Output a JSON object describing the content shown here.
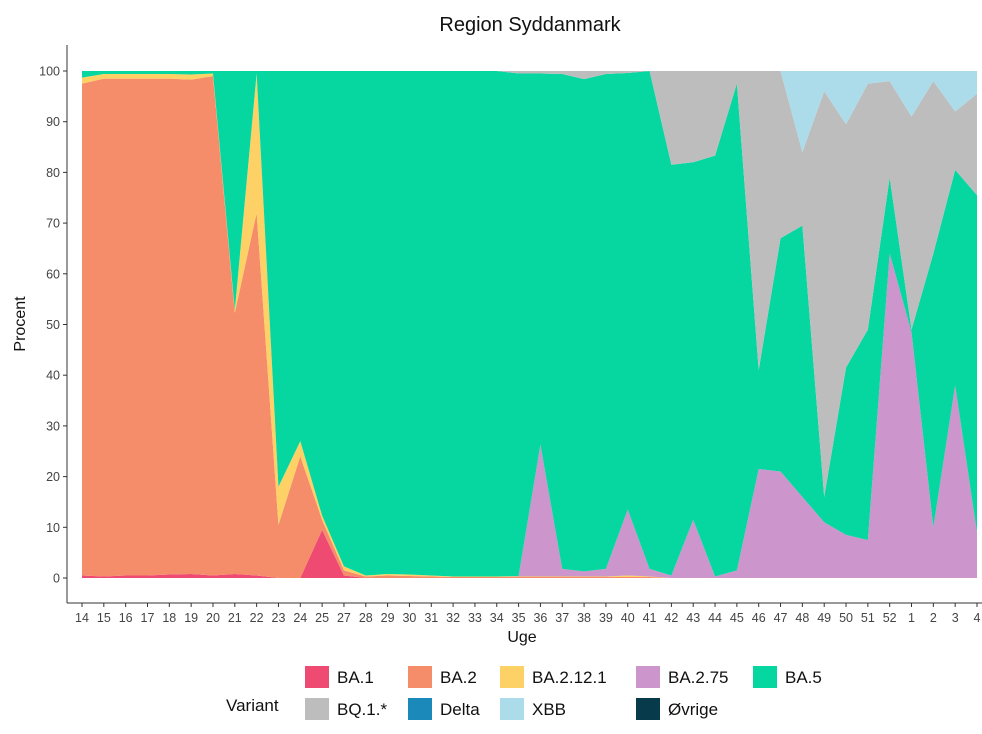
{
  "chart_data": {
    "type": "area",
    "stacked": true,
    "title": "Region Syddanmark",
    "xlabel": "Uge",
    "ylabel": "Procent",
    "ylim": [
      0,
      100
    ],
    "yticks": [
      0,
      10,
      20,
      30,
      40,
      50,
      60,
      70,
      80,
      90,
      100
    ],
    "grid": false,
    "legend_position": "bottom",
    "legend_title": "Variant",
    "categories": [
      "14",
      "15",
      "16",
      "17",
      "18",
      "19",
      "20",
      "21",
      "22",
      "23",
      "24",
      "25",
      "27",
      "28",
      "29",
      "30",
      "31",
      "32",
      "33",
      "34",
      "35",
      "36",
      "37",
      "38",
      "39",
      "40",
      "41",
      "42",
      "43",
      "44",
      "45",
      "46",
      "47",
      "48",
      "49",
      "50",
      "51",
      "52",
      "1",
      "2",
      "3",
      "4"
    ],
    "series": [
      {
        "name": "BA.1",
        "color": "#ef4a72",
        "values": [
          0.5,
          0.3,
          0.5,
          0.5,
          0.7,
          0.8,
          0.5,
          0.8,
          0.5,
          0,
          0,
          9.5,
          0.5,
          0,
          0,
          0,
          0,
          0,
          0,
          0,
          0,
          0,
          0,
          0,
          0,
          0,
          0,
          0,
          0,
          0,
          0,
          0,
          0,
          0,
          0,
          0,
          0,
          0,
          0,
          0,
          0,
          0
        ]
      },
      {
        "name": "BA.2",
        "color": "#f58d6b",
        "values": [
          97,
          98.2,
          98,
          98,
          97.8,
          97.5,
          98.5,
          51.5,
          71.5,
          10.5,
          24,
          2,
          1,
          0.3,
          0.5,
          0.4,
          0.3,
          0.2,
          0.2,
          0.2,
          0.2,
          0.2,
          0.2,
          0.2,
          0.2,
          0.2,
          0.2,
          0,
          0,
          0,
          0,
          0,
          0,
          0,
          0,
          0,
          0,
          0,
          0,
          0,
          0,
          0
        ]
      },
      {
        "name": "BA.2.12.1",
        "color": "#fdd166",
        "values": [
          1.2,
          0.9,
          0.9,
          0.9,
          0.9,
          1.0,
          0.5,
          0.5,
          27.5,
          7.5,
          3,
          0.8,
          0.8,
          0.2,
          0.3,
          0.3,
          0.2,
          0.1,
          0.1,
          0.1,
          0.1,
          0.1,
          0.1,
          0.1,
          0.1,
          0.3,
          0.1,
          0,
          0,
          0,
          0,
          0,
          0,
          0,
          0,
          0,
          0,
          0,
          0,
          0,
          0,
          0
        ]
      },
      {
        "name": "BA.2.75",
        "color": "#cc95cc",
        "values": [
          0,
          0,
          0,
          0,
          0,
          0,
          0,
          0,
          0,
          0,
          0,
          0,
          0,
          0,
          0,
          0,
          0,
          0,
          0,
          0,
          0.1,
          26,
          1.5,
          1,
          1.5,
          13,
          1.5,
          0.5,
          11.5,
          0.3,
          1.5,
          21.5,
          21,
          16,
          11,
          8.5,
          7.5,
          64,
          48.5,
          10,
          38,
          9
        ]
      },
      {
        "name": "BA.5",
        "color": "#06d6a0",
        "values": [
          1.3,
          0.6,
          0.6,
          0.6,
          0.6,
          0.7,
          0.5,
          47.2,
          0.5,
          82,
          73,
          87.7,
          97.7,
          99.5,
          99.2,
          99.3,
          99.5,
          99.7,
          99.7,
          99.7,
          99.1,
          73.2,
          97.6,
          97.1,
          97.6,
          86.1,
          98.2,
          81,
          70.5,
          83,
          96,
          19.5,
          46,
          53.5,
          5,
          33,
          41.5,
          15,
          0.5,
          54,
          42.5,
          66.5
        ]
      },
      {
        "name": "BQ.1.*",
        "color": "#bdbdbd",
        "values": [
          0,
          0,
          0,
          0,
          0,
          0,
          0,
          0,
          0,
          0,
          0,
          0,
          0,
          0,
          0,
          0,
          0,
          0,
          0,
          0,
          0.5,
          0.5,
          0.6,
          1.6,
          0.6,
          0.4,
          0,
          18.5,
          18,
          16.7,
          2.5,
          59,
          33,
          14.5,
          80,
          48,
          48.5,
          19,
          42,
          34,
          11.5,
          20
        ]
      },
      {
        "name": "Delta",
        "color": "#1b8aba",
        "values": [
          0,
          0,
          0,
          0,
          0,
          0,
          0,
          0,
          0,
          0,
          0,
          0,
          0,
          0,
          0,
          0,
          0,
          0,
          0,
          0,
          0,
          0,
          0,
          0,
          0,
          0,
          0,
          0,
          0,
          0,
          0,
          0,
          0,
          0,
          0,
          0,
          0,
          0,
          0,
          0,
          0,
          0
        ]
      },
      {
        "name": "XBB",
        "color": "#acdcea",
        "values": [
          0,
          0,
          0,
          0,
          0,
          0,
          0,
          0,
          0,
          0,
          0,
          0,
          0,
          0,
          0,
          0,
          0,
          0,
          0,
          0,
          0,
          0,
          0,
          0,
          0,
          0,
          0,
          0,
          0,
          0,
          0,
          0,
          0,
          16,
          4,
          10.5,
          2.5,
          2,
          9,
          2,
          8,
          4.5
        ]
      },
      {
        "name": "Øvrige",
        "color": "#073b4c",
        "values": [
          0,
          0,
          0,
          0,
          0,
          0,
          0,
          0,
          0,
          0,
          0,
          0,
          0,
          0,
          0,
          0,
          0,
          0,
          0,
          0,
          0,
          0,
          0,
          0,
          0,
          0,
          0,
          0,
          0,
          0,
          0,
          0,
          0,
          0,
          0,
          0,
          0,
          0,
          0,
          0,
          0,
          0
        ]
      }
    ]
  }
}
